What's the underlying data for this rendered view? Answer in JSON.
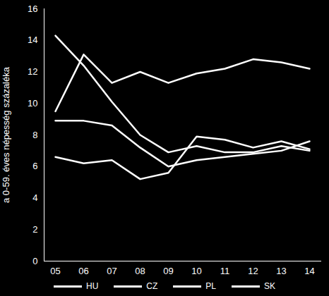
{
  "chart_data": {
    "type": "line",
    "y_label": "a 0-59. éves népesség százaléka",
    "categories": [
      "05",
      "06",
      "07",
      "08",
      "09",
      "10",
      "11",
      "12",
      "13",
      "14"
    ],
    "series": [
      {
        "name": "HU",
        "color": "#ffffff",
        "values": [
          9.5,
          13.1,
          11.3,
          12.0,
          11.3,
          11.9,
          12.2,
          12.8,
          12.6,
          12.2
        ]
      },
      {
        "name": "CZ",
        "color": "#ffffff",
        "values": [
          6.6,
          6.2,
          6.4,
          5.2,
          5.6,
          7.9,
          7.7,
          7.2,
          7.6,
          7.1
        ]
      },
      {
        "name": "PL",
        "color": "#ffffff",
        "values": [
          14.3,
          12.4,
          10.1,
          8.0,
          6.9,
          7.3,
          6.9,
          6.9,
          7.3,
          7.0
        ]
      },
      {
        "name": "SK",
        "color": "#ffffff",
        "values": [
          8.9,
          8.9,
          8.6,
          7.2,
          6.0,
          6.4,
          6.6,
          6.8,
          7.0,
          7.6
        ]
      }
    ],
    "ylim": [
      0,
      16
    ],
    "yticks": [
      0,
      2,
      4,
      6,
      8,
      10,
      12,
      14,
      16
    ],
    "grid": false,
    "legend": "bottom"
  }
}
